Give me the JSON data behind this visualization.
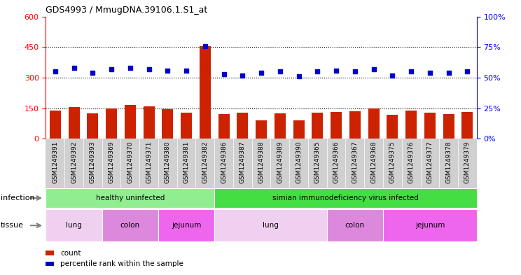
{
  "title": "GDS4993 / MmugDNA.39106.1.S1_at",
  "samples": [
    "GSM1249391",
    "GSM1249392",
    "GSM1249393",
    "GSM1249369",
    "GSM1249370",
    "GSM1249371",
    "GSM1249380",
    "GSM1249381",
    "GSM1249382",
    "GSM1249386",
    "GSM1249387",
    "GSM1249388",
    "GSM1249389",
    "GSM1249390",
    "GSM1249365",
    "GSM1249366",
    "GSM1249367",
    "GSM1249368",
    "GSM1249375",
    "GSM1249376",
    "GSM1249377",
    "GSM1249378",
    "GSM1249379"
  ],
  "counts": [
    140,
    155,
    125,
    150,
    165,
    158,
    145,
    128,
    455,
    120,
    128,
    90,
    125,
    90,
    128,
    132,
    135,
    150,
    118,
    138,
    130,
    122,
    132
  ],
  "percentiles": [
    55,
    58,
    54,
    57,
    58,
    57,
    56,
    56,
    76,
    53,
    52,
    54,
    55,
    51,
    55,
    56,
    55,
    57,
    52,
    55,
    54,
    54,
    55
  ],
  "bar_color": "#cc2200",
  "dot_color": "#0000cc",
  "left_ylim": [
    0,
    600
  ],
  "right_ylim": [
    0,
    100
  ],
  "left_yticks": [
    0,
    150,
    300,
    450,
    600
  ],
  "right_yticks": [
    0,
    25,
    50,
    75,
    100
  ],
  "dotted_lines": [
    150,
    300,
    450
  ],
  "plot_bg": "#ffffff",
  "tick_area_bg": "#d0d0d0",
  "infection_groups": [
    {
      "label": "healthy uninfected",
      "start": 0,
      "end": 9,
      "color": "#90ee90"
    },
    {
      "label": "simian immunodeficiency virus infected",
      "start": 9,
      "end": 23,
      "color": "#44dd44"
    }
  ],
  "tissue_groups": [
    {
      "label": "lung",
      "start": 0,
      "end": 3,
      "color": "#f0d0f0"
    },
    {
      "label": "colon",
      "start": 3,
      "end": 6,
      "color": "#dd88dd"
    },
    {
      "label": "jejunum",
      "start": 6,
      "end": 9,
      "color": "#ee66ee"
    },
    {
      "label": "lung",
      "start": 9,
      "end": 15,
      "color": "#f0d0f0"
    },
    {
      "label": "colon",
      "start": 15,
      "end": 18,
      "color": "#dd88dd"
    },
    {
      "label": "jejunum",
      "start": 18,
      "end": 23,
      "color": "#ee66ee"
    }
  ],
  "legend_items": [
    {
      "color": "#cc2200",
      "label": "count"
    },
    {
      "color": "#0000cc",
      "label": "percentile rank within the sample"
    }
  ]
}
